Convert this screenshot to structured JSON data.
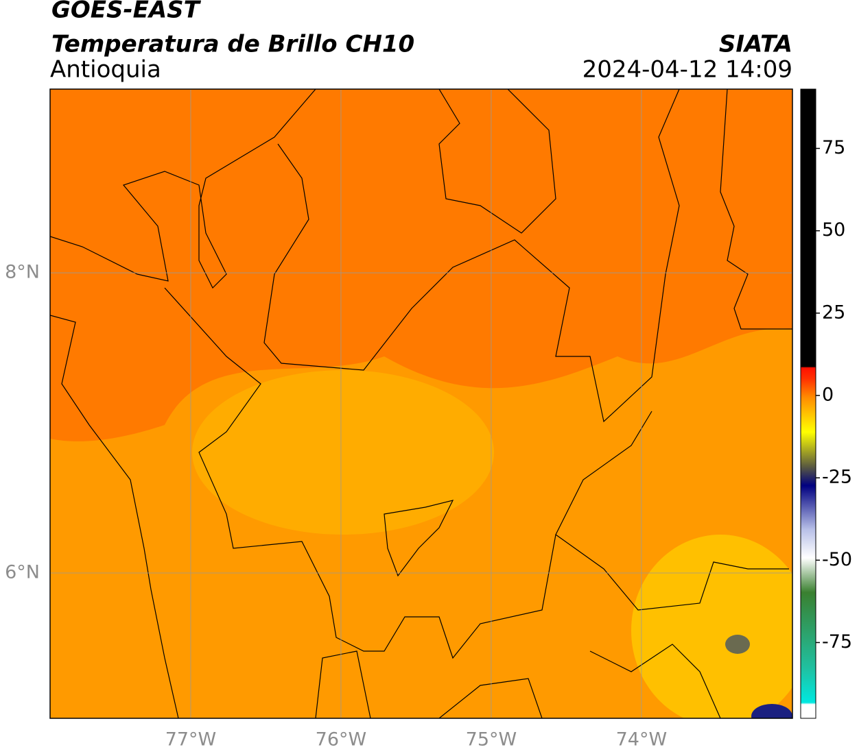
{
  "header": {
    "title": "GOES-EAST",
    "subtitle": "Temperatura de Brillo CH10",
    "region": "Antioquia",
    "source": "SIATA",
    "datetime": "2024-04-12 14:09"
  },
  "map": {
    "lonlim": [
      -77.936,
      -72.995
    ],
    "latlim": [
      5.032,
      9.224
    ],
    "lon_ticks": [
      {
        "value": -77,
        "label": "77°W"
      },
      {
        "value": -76,
        "label": "76°W"
      },
      {
        "value": -75,
        "label": "75°W"
      },
      {
        "value": -74,
        "label": "74°W"
      }
    ],
    "lat_ticks": [
      {
        "value": 8,
        "label": "8°N"
      },
      {
        "value": 6,
        "label": "6°N"
      }
    ],
    "grid": true
  },
  "colorbar": {
    "lim": [
      -98,
      93
    ],
    "ticks": [
      75,
      50,
      25,
      0,
      -25,
      -50,
      -75
    ]
  }
}
